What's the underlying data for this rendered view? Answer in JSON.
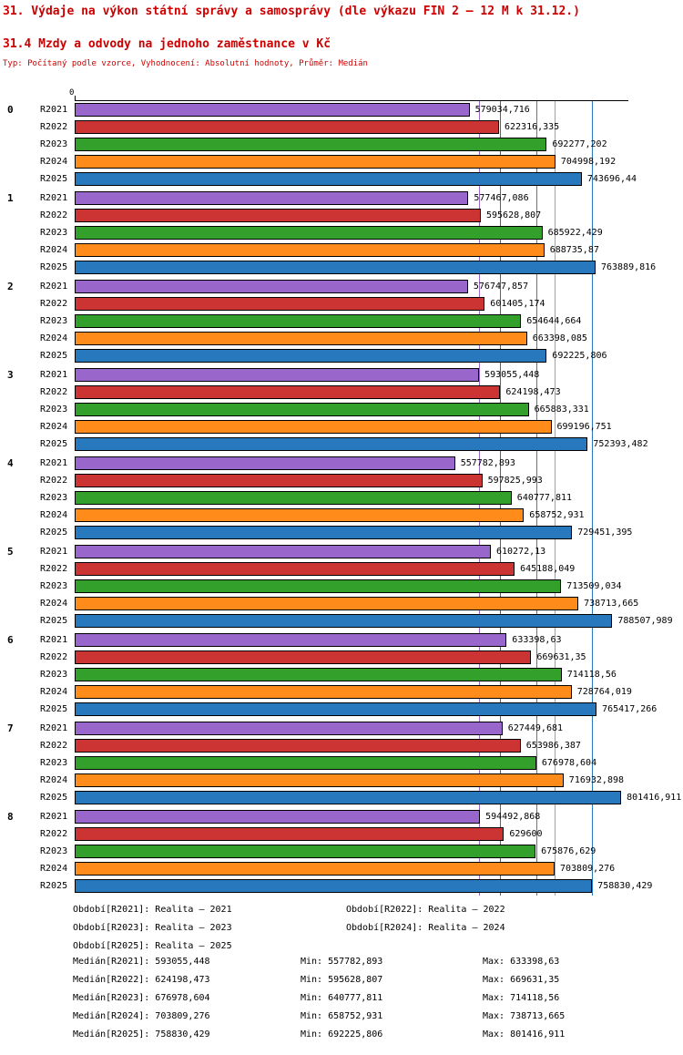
{
  "page": {
    "title": "31. Výdaje na výkon státní správy a samosprávy (dle výkazu FIN 2 – 12 M k 31.12.)",
    "subtitle": "31.4 Mzdy a odvody na jednoho zaměstnance v Kč",
    "meta": "Typ: Počítaný podle vzorce, Vyhodnocení: Absolutní hodnoty, Průměr: Medián",
    "title_color": "#CC0000"
  },
  "chart_data": {
    "type": "bar",
    "orientation": "horizontal-grouped",
    "title": "31.4 Mzdy a odvody na jednoho zaměstnance v Kč",
    "x_axis": {
      "zero_label": "0",
      "xlim": [
        0,
        812000
      ],
      "grid": false
    },
    "categories": [
      "0",
      "1",
      "2",
      "3",
      "4",
      "5",
      "6",
      "7",
      "8"
    ],
    "series": [
      {
        "name": "R2021",
        "color": "#9966CC",
        "values": [
          579034.716,
          577467.086,
          576747.857,
          593055.448,
          557782.893,
          610272.13,
          633398.63,
          627449.681,
          594492.868
        ],
        "value_labels": [
          "579034,716",
          "577467,086",
          "576747,857",
          "593055,448",
          "557782,893",
          "610272,13",
          "633398,63",
          "627449,681",
          "594492,868"
        ],
        "median": 593055.448
      },
      {
        "name": "R2022",
        "color": "#CC3333",
        "values": [
          622316.335,
          595628.807,
          601405.174,
          624198.473,
          597825.993,
          645188.049,
          669631.35,
          653986.387,
          629600
        ],
        "value_labels": [
          "622316,335",
          "595628,807",
          "601405,174",
          "624198,473",
          "597825,993",
          "645188,049",
          "669631,35",
          "653986,387",
          "629600"
        ],
        "median": 624198.473
      },
      {
        "name": "R2023",
        "color": "#33A02C",
        "values": [
          692277.202,
          685922.429,
          654644.664,
          665883.331,
          640777.811,
          713509.034,
          714118.56,
          676978.604,
          675876.629
        ],
        "value_labels": [
          "692277,202",
          "685922,429",
          "654644,664",
          "665883,331",
          "640777,811",
          "713509,034",
          "714118,56",
          "676978,604",
          "675876,629"
        ],
        "median": 676978.604
      },
      {
        "name": "R2024",
        "color": "#FF8C1A",
        "values": [
          704998.192,
          688735.87,
          663398.085,
          699196.751,
          658752.931,
          738713.665,
          728764.019,
          716932.898,
          703809.276
        ],
        "value_labels": [
          "704998,192",
          "688735,87",
          "663398,085",
          "699196,751",
          "658752,931",
          "738713,665",
          "728764,019",
          "716932,898",
          "703809,276"
        ],
        "median": 703809.276
      },
      {
        "name": "R2025",
        "color": "#2878BE",
        "values": [
          743696.44,
          763889.816,
          692225.806,
          752393.482,
          729451.395,
          788507.989,
          765417.266,
          801416.911,
          758830.429
        ],
        "value_labels": [
          "743696,44",
          "763889,816",
          "692225,806",
          "752393,482",
          "729451,395",
          "788507,989",
          "765417,266",
          "801416,911",
          "758830,429"
        ],
        "median": 758830.429
      }
    ]
  },
  "legend": {
    "rows": [
      {
        "left": "Období[R2021]: Realita – 2021",
        "right": "Období[R2022]: Realita – 2022"
      },
      {
        "left": "Období[R2023]: Realita – 2023",
        "right": "Období[R2024]: Realita – 2024"
      },
      {
        "left": "Období[R2025]: Realita – 2025",
        "right": ""
      }
    ]
  },
  "stats": {
    "rows": [
      {
        "median": "Medián[R2021]: 593055,448",
        "min": "Min: 557782,893",
        "max": "Max: 633398,63"
      },
      {
        "median": "Medián[R2022]: 624198,473",
        "min": "Min: 595628,807",
        "max": "Max: 669631,35"
      },
      {
        "median": "Medián[R2023]: 676978,604",
        "min": "Min: 640777,811",
        "max": "Max: 714118,56"
      },
      {
        "median": "Medián[R2024]: 703809,276",
        "min": "Min: 658752,931",
        "max": "Max: 738713,665"
      },
      {
        "median": "Medián[R2025]: 758830,429",
        "min": "Min: 692225,806",
        "max": "Max: 801416,911"
      }
    ]
  }
}
